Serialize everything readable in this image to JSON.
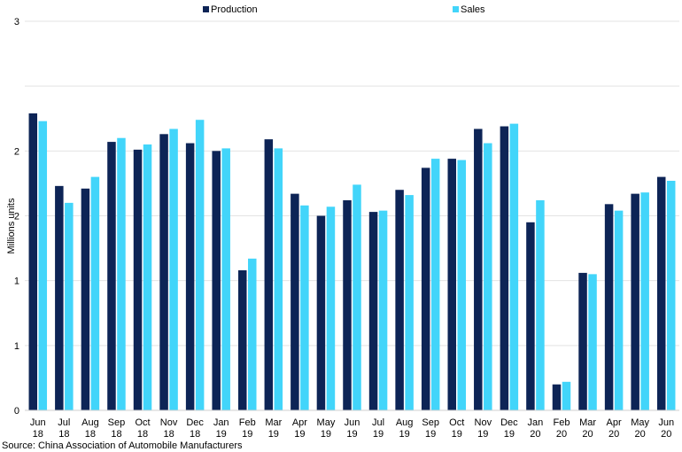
{
  "chart_data": {
    "type": "bar",
    "ylabel": "Millions units",
    "xlabel": "",
    "ylim": [
      0,
      3
    ],
    "y_ticks": [
      {
        "value": 0,
        "label": "0"
      },
      {
        "value": 0.5,
        "label": "1"
      },
      {
        "value": 1.0,
        "label": "1"
      },
      {
        "value": 1.5,
        "label": "2"
      },
      {
        "value": 2.0,
        "label": "2"
      },
      {
        "value": 2.5,
        "label": "3"
      }
    ],
    "grid": true,
    "legend": "top-center",
    "categories": [
      [
        "Jun",
        "18"
      ],
      [
        "Jul",
        "18"
      ],
      [
        "Aug",
        "18"
      ],
      [
        "Sep",
        "18"
      ],
      [
        "Oct",
        "18"
      ],
      [
        "Nov",
        "18"
      ],
      [
        "Dec",
        "18"
      ],
      [
        "Jan",
        "19"
      ],
      [
        "Feb",
        "19"
      ],
      [
        "Mar",
        "19"
      ],
      [
        "Apr",
        "19"
      ],
      [
        "May",
        "19"
      ],
      [
        "Jun",
        "19"
      ],
      [
        "Jul",
        "19"
      ],
      [
        "Aug",
        "19"
      ],
      [
        "Sep",
        "19"
      ],
      [
        "Oct",
        "19"
      ],
      [
        "Nov",
        "19"
      ],
      [
        "Dec",
        "19"
      ],
      [
        "Jan",
        "20"
      ],
      [
        "Feb",
        "20"
      ],
      [
        "Mar",
        "20"
      ],
      [
        "Apr",
        "20"
      ],
      [
        "May",
        "20"
      ],
      [
        "Jun",
        "20"
      ]
    ],
    "series": [
      {
        "name": "Production",
        "color": "#0d2456",
        "values": [
          2.29,
          1.73,
          1.71,
          2.07,
          2.01,
          2.13,
          2.06,
          2.0,
          1.08,
          2.09,
          1.67,
          1.5,
          1.62,
          1.53,
          1.7,
          1.87,
          1.94,
          2.17,
          2.19,
          1.45,
          0.2,
          1.06,
          1.59,
          1.67,
          1.8
        ]
      },
      {
        "name": "Sales",
        "color": "#42d5fa",
        "values": [
          2.23,
          1.6,
          1.8,
          2.1,
          2.05,
          2.17,
          2.24,
          2.02,
          1.17,
          2.02,
          1.58,
          1.57,
          1.74,
          1.54,
          1.66,
          1.94,
          1.93,
          2.06,
          2.21,
          1.62,
          0.22,
          1.05,
          1.54,
          1.68,
          1.77
        ]
      }
    ]
  },
  "source": "Source: China Association of Automobile Manufacturers"
}
